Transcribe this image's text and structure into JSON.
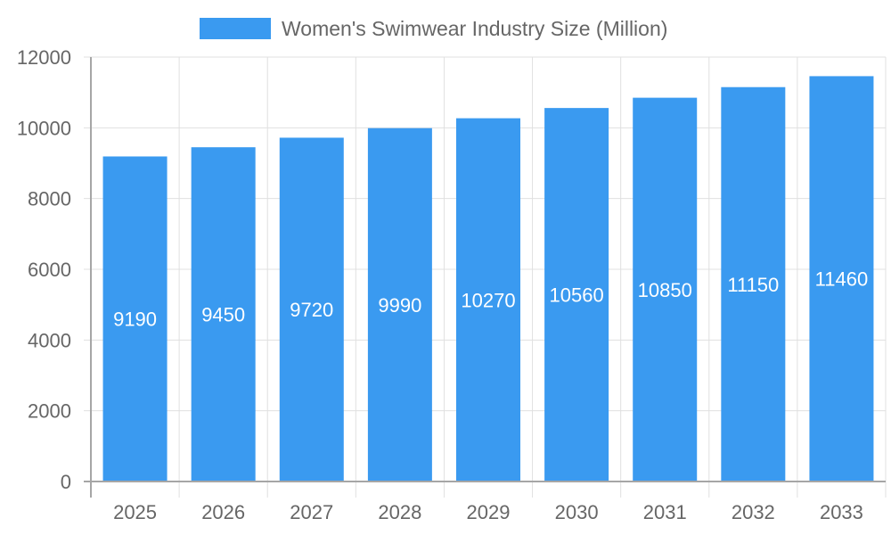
{
  "colors": {
    "bar": "#3a9af0",
    "grid": "#e0e0e0",
    "axis": "#a6a6a6",
    "tick_text": "#666666",
    "bar_label": "#ffffff"
  },
  "chart_data": {
    "type": "bar",
    "title": "",
    "legend": [
      "Women's Swimwear Industry Size (Million)"
    ],
    "legend_position": "top",
    "categories": [
      "2025",
      "2026",
      "2027",
      "2028",
      "2029",
      "2030",
      "2031",
      "2032",
      "2033"
    ],
    "series": [
      {
        "name": "Women's Swimwear Industry Size (Million)",
        "values": [
          9190,
          9450,
          9720,
          9990,
          10270,
          10560,
          10850,
          11150,
          11460
        ]
      }
    ],
    "xlabel": "",
    "ylabel": "",
    "ylim": [
      0,
      12000
    ],
    "yticks": [
      0,
      2000,
      4000,
      6000,
      8000,
      10000,
      12000
    ],
    "grid": true,
    "data_labels": true
  }
}
